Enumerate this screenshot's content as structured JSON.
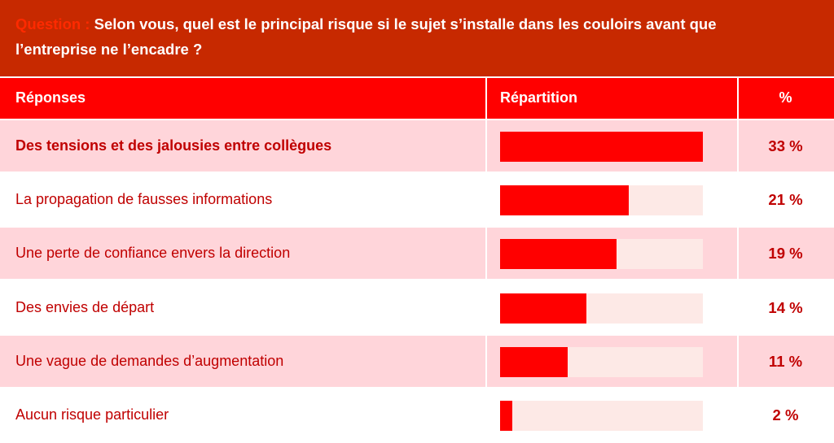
{
  "question": {
    "label": "Question :",
    "text": "Selon vous, quel est le principal risque si le sujet s’installe dans les couloirs avant que l’entreprise ne l’encadre ?"
  },
  "table": {
    "headers": {
      "responses": "Réponses",
      "distribution": "Répartition",
      "percent": "%"
    }
  },
  "colors": {
    "question_band": "#c72900",
    "header_band": "#ff0000",
    "row_shaded": "#ffd5da",
    "row_plain": "#ffffff",
    "bar_fill": "#ff0000",
    "bar_track": "#fde9e6",
    "text": "#c00000"
  },
  "chart_data": {
    "type": "bar",
    "orientation": "horizontal",
    "categories": [
      "Des tensions et des jalousies entre collègues",
      "La propagation de fausses informations",
      "Une perte de confiance envers la direction",
      "Des envies de départ",
      "Une vague de demandes d’augmentation",
      "Aucun risque particulier"
    ],
    "values": [
      33,
      21,
      19,
      14,
      11,
      2
    ],
    "value_labels": [
      "33 %",
      "21 %",
      "19 %",
      "14 %",
      "11 %",
      "2 %"
    ],
    "xlim": [
      0,
      33
    ]
  }
}
